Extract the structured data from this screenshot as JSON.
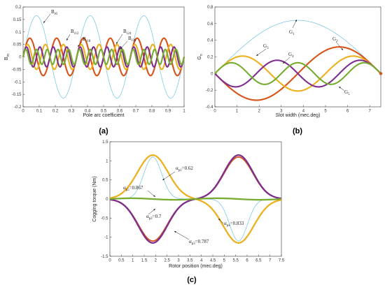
{
  "chart_data": [
    {
      "panel_label": "(a)",
      "type": "line",
      "xlabel": "Pole arc coefficient",
      "ylabel": "B",
      "ylabel_sub": "rn",
      "xlim": [
        0,
        1
      ],
      "ylim": [
        -0.2,
        0.2
      ],
      "x_ticks": [
        "0",
        "0.1",
        "0.2",
        "0.3",
        "0.4",
        "0.5",
        "0.6",
        "0.7",
        "0.8",
        "0.9",
        "1"
      ],
      "y_ticks": [
        "-0.2",
        "-0.15",
        "-0.1",
        "-0.05",
        "0",
        "0.05",
        "0.1",
        "0.15",
        "0.2"
      ],
      "grid": false,
      "series": [
        {
          "name": "Br6",
          "color": "#6ec1e4",
          "amplitude": 0.165,
          "harmonic": 6
        },
        {
          "name": "Br12",
          "color": "#d95319",
          "amplitude": 0.075,
          "harmonic": 12
        },
        {
          "name": "Br18",
          "color": "#edb120",
          "amplitude": 0.05,
          "harmonic": 18
        },
        {
          "name": "Br24",
          "color": "#7e2f8e",
          "amplitude": 0.04,
          "harmonic": 24
        },
        {
          "name": "Br30",
          "color": "#77ac30",
          "amplitude": 0.03,
          "harmonic": 30
        }
      ],
      "annotations": [
        {
          "main": "B",
          "sub": "r6"
        },
        {
          "main": "B",
          "sub": "r12"
        },
        {
          "main": "B",
          "sub": "r18"
        },
        {
          "main": "B",
          "sub": "r24"
        },
        {
          "main": "B",
          "sub": "r30"
        }
      ]
    },
    {
      "panel_label": "(b)",
      "type": "line",
      "xlabel": "Slot width (mec.deg)",
      "ylabel": "G",
      "ylabel_sub": "n",
      "xlim": [
        0,
        7.5
      ],
      "ylim": [
        -0.4,
        0.8
      ],
      "x_ticks": [
        "0",
        "1",
        "2",
        "3",
        "4",
        "5",
        "6",
        "7"
      ],
      "y_ticks": [
        "-0.4",
        "-0.2",
        "0",
        "0.2",
        "0.4",
        "0.6",
        "0.8"
      ],
      "grid": false,
      "series": [
        {
          "name": "G1",
          "color": "#6ec1e4",
          "amplitude": 0.64,
          "harmonic": 1
        },
        {
          "name": "G2",
          "color": "#d95319",
          "amplitude": 0.32,
          "harmonic": 2
        },
        {
          "name": "G3",
          "color": "#edb120",
          "amplitude": 0.21,
          "harmonic": 3
        },
        {
          "name": "G4",
          "color": "#7e2f8e",
          "amplitude": 0.16,
          "harmonic": 4
        },
        {
          "name": "G5",
          "color": "#77ac30",
          "amplitude": 0.13,
          "harmonic": 5
        }
      ],
      "annotations": [
        {
          "main": "G",
          "sub": "1"
        },
        {
          "main": "G",
          "sub": "2"
        },
        {
          "main": "G",
          "sub": "3"
        },
        {
          "main": "G",
          "sub": "4"
        },
        {
          "main": "G",
          "sub": "5"
        }
      ]
    },
    {
      "panel_label": "(c)",
      "type": "line",
      "xlabel": "Rotor position (mec.deg)",
      "ylabel": "Cogging torque (Nm)",
      "xlim": [
        0,
        7.5
      ],
      "ylim": [
        -1.5,
        1.5
      ],
      "x_ticks": [
        "0",
        "0.5",
        "1",
        "1.5",
        "2",
        "2.5",
        "3",
        "3.5",
        "4",
        "4.5",
        "5",
        "5.5",
        "6",
        "6.5",
        "7",
        "7.5"
      ],
      "y_ticks": [
        "-1.5",
        "-1",
        "-0.5",
        "0",
        "0.5",
        "1",
        "1.5"
      ],
      "grid": false,
      "series": [
        {
          "name": "αp1=0.62",
          "color": "#edb120",
          "peak": 1.15,
          "shape": "pos-neg"
        },
        {
          "name": "αp2=0.7",
          "color": "#d95319",
          "peak": 1.1,
          "shape": "neg-pos"
        },
        {
          "name": "αp3=0.787",
          "color": "#7e2f8e",
          "peak": 1.15,
          "shape": "neg-pos"
        },
        {
          "name": "αp4=0.833",
          "color": "#6ec1e4",
          "peak": 1.1,
          "shape": "pos-neg-thin"
        },
        {
          "name": "αp5=0.867",
          "color": "#77ac30",
          "peak": 0.02,
          "shape": "flat"
        }
      ],
      "annotations": [
        {
          "main": "α",
          "sub": "p1",
          "tail": "=0.62"
        },
        {
          "main": "α",
          "sub": "p5",
          "tail": "=0.867"
        },
        {
          "main": "α",
          "sub": "p2",
          "tail": "=0.7"
        },
        {
          "main": "α",
          "sub": "p3",
          "tail": "=0.787"
        },
        {
          "main": "α",
          "sub": "p4",
          "tail": "=0.833"
        }
      ]
    }
  ]
}
